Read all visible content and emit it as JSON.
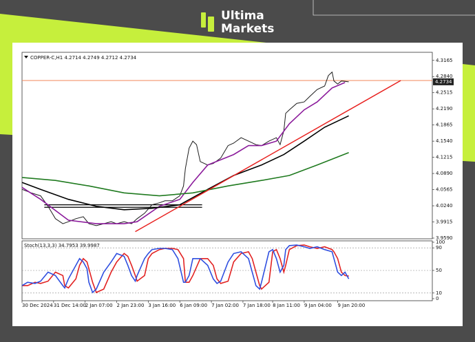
{
  "logo": {
    "line1": "Ultima",
    "line2": "Markets"
  },
  "chart_data": [
    {
      "type": "line",
      "symbol": "COPPER-C,H1",
      "ohlc": [
        4.2714,
        4.2749,
        4.2712,
        4.2734
      ],
      "last_price": 4.2734,
      "xlim": [
        0,
        221
      ],
      "ylim": [
        3.959,
        4.33
      ],
      "grid": false,
      "yticks": [
        4.3165,
        {
          "value": 4.284,
          "label": "4.2840"
        },
        4.2515,
        {
          "value": 4.219,
          "label": "4.2190"
        },
        4.1865,
        {
          "value": 4.154,
          "label": "4.1540"
        },
        4.1215,
        {
          "value": 4.089,
          "label": "4.0890"
        },
        4.0565,
        {
          "value": 4.024,
          "label": "4.0240"
        },
        3.9915,
        {
          "value": 3.959,
          "label": "3.9590"
        }
      ],
      "series": [
        {
          "color": "#1a1a1a",
          "x": [
            0,
            5,
            10,
            14,
            18,
            22,
            25,
            29,
            33,
            36,
            40,
            44,
            48,
            51,
            55,
            59,
            62,
            66,
            70,
            74,
            77,
            81,
            85,
            87,
            88,
            90,
            92,
            94,
            96,
            100,
            103,
            107,
            111,
            114,
            118,
            122,
            126,
            129,
            133,
            137,
            139,
            141,
            142,
            144,
            148,
            152,
            155,
            159,
            163,
            165,
            167,
            168,
            170,
            172,
            176
          ],
          "values": [
            4.057,
            4.05,
            4.044,
            4.023,
            3.998,
            3.988,
            3.992,
            3.998,
            4.002,
            3.988,
            3.984,
            3.988,
            3.992,
            3.988,
            3.992,
            3.988,
            3.998,
            4.009,
            4.026,
            4.03,
            4.034,
            4.034,
            4.044,
            4.064,
            4.099,
            4.14,
            4.154,
            4.147,
            4.113,
            4.106,
            4.109,
            4.12,
            4.145,
            4.15,
            4.161,
            4.154,
            4.147,
            4.145,
            4.154,
            4.161,
            4.147,
            4.175,
            4.21,
            4.217,
            4.23,
            4.233,
            4.244,
            4.258,
            4.265,
            4.286,
            4.293,
            4.275,
            4.269,
            4.275,
            4.2734
          ]
        },
        {
          "color": "#8b1a9b",
          "x": [
            0,
            10,
            25,
            40,
            55,
            62,
            74,
            85,
            92,
            100,
            114,
            122,
            129,
            137,
            144,
            152,
            159,
            167,
            174
          ],
          "values": [
            4.061,
            4.037,
            3.995,
            3.988,
            3.988,
            3.992,
            4.023,
            4.037,
            4.071,
            4.106,
            4.127,
            4.145,
            4.145,
            4.154,
            4.189,
            4.217,
            4.233,
            4.261,
            4.272
          ]
        },
        {
          "color": "#000000",
          "x": [
            0,
            10,
            25,
            40,
            55,
            70,
            85,
            100,
            114,
            129,
            141,
            152,
            163,
            176
          ],
          "values": [
            4.071,
            4.057,
            4.037,
            4.023,
            4.016,
            4.019,
            4.026,
            4.057,
            4.085,
            4.106,
            4.127,
            4.154,
            4.182,
            4.205
          ]
        },
        {
          "color": "#1f7a1f",
          "x": [
            0,
            18,
            36,
            55,
            74,
            92,
            111,
            129,
            144,
            159,
            176
          ],
          "values": [
            4.081,
            4.075,
            4.064,
            4.05,
            4.044,
            4.05,
            4.064,
            4.075,
            4.085,
            4.106,
            4.131
          ]
        }
      ],
      "hline": 4.276,
      "hline_color": "#f0875a",
      "support": [
        4.026,
        4.021
      ],
      "support_x": [
        12,
        97
      ],
      "trendline": {
        "color": "#e8201e",
        "x": [
          61,
          204
        ],
        "y": [
          3.972,
          4.276
        ]
      }
    },
    {
      "type": "line",
      "label": "Stoch(13,3,3)",
      "header_values": [
        34.7953,
        39.9987
      ],
      "xlim": [
        0,
        221
      ],
      "ylim": [
        0,
        100
      ],
      "yticks": [
        100,
        90,
        50,
        10,
        0
      ],
      "levels": [
        90,
        50,
        10
      ],
      "xticks": [
        {
          "value": 0,
          "label": "30 Dec 2024"
        },
        {
          "value": 17,
          "label": "31 Dec 14:00"
        },
        {
          "value": 34,
          "label": "2 Jan 07:00"
        },
        {
          "value": 51,
          "label": "2 Jan 23:00"
        },
        {
          "value": 68,
          "label": "3 Jan 16:00"
        },
        {
          "value": 85,
          "label": "6 Jan 09:00"
        },
        {
          "value": 102,
          "label": "7 Jan 02:00"
        },
        {
          "value": 119,
          "label": "7 Jan 18:00"
        },
        {
          "value": 135,
          "label": "8 Jan 11:00"
        },
        {
          "value": 152,
          "label": "9 Jan 04:00"
        },
        {
          "value": 170,
          "label": "9 Jan 20:00"
        }
      ],
      "series": [
        {
          "color": "#e22222",
          "x": [
            0,
            3,
            7,
            10,
            14,
            18,
            22,
            23,
            25,
            29,
            31,
            33,
            35,
            36,
            38,
            40,
            44,
            48,
            51,
            55,
            57,
            59,
            61,
            62,
            66,
            68,
            70,
            74,
            77,
            81,
            84,
            87,
            88,
            90,
            92,
            96,
            100,
            103,
            105,
            107,
            111,
            114,
            118,
            122,
            124,
            126,
            128,
            129,
            133,
            135,
            137,
            139,
            141,
            142,
            144,
            148,
            152,
            155,
            159,
            163,
            167,
            168,
            170,
            172,
            174,
            176
          ],
          "values": [
            23,
            23,
            29,
            27,
            31,
            47,
            41,
            23,
            19,
            35,
            59,
            71,
            65,
            53,
            29,
            11,
            17,
            47,
            65,
            80,
            75,
            59,
            41,
            31,
            41,
            71,
            80,
            87,
            89,
            89,
            87,
            71,
            29,
            29,
            41,
            71,
            71,
            59,
            35,
            27,
            31,
            65,
            80,
            83,
            71,
            47,
            23,
            17,
            29,
            83,
            87,
            71,
            47,
            59,
            87,
            94,
            95,
            92,
            89,
            92,
            87,
            83,
            71,
            47,
            41,
            40
          ]
        },
        {
          "color": "#2f4fe0",
          "x": [
            0,
            3,
            7,
            10,
            14,
            18,
            22,
            23,
            25,
            29,
            31,
            33,
            35,
            36,
            38,
            40,
            44,
            48,
            51,
            55,
            57,
            59,
            61,
            62,
            66,
            68,
            70,
            74,
            77,
            81,
            84,
            87,
            88,
            90,
            92,
            96,
            100,
            103,
            105,
            107,
            111,
            114,
            118,
            122,
            124,
            126,
            128,
            129,
            133,
            135,
            137,
            139,
            141,
            142,
            144,
            148,
            152,
            155,
            159,
            163,
            167,
            168,
            170,
            172,
            174,
            176
          ],
          "values": [
            23,
            29,
            27,
            31,
            47,
            41,
            23,
            19,
            35,
            59,
            71,
            65,
            53,
            29,
            11,
            17,
            47,
            65,
            80,
            75,
            59,
            41,
            31,
            41,
            71,
            80,
            87,
            89,
            89,
            87,
            71,
            29,
            29,
            41,
            71,
            71,
            59,
            35,
            27,
            31,
            65,
            80,
            83,
            71,
            47,
            23,
            17,
            29,
            83,
            87,
            71,
            47,
            59,
            87,
            94,
            95,
            92,
            89,
            92,
            87,
            83,
            71,
            47,
            41,
            47,
            35
          ]
        }
      ]
    }
  ]
}
